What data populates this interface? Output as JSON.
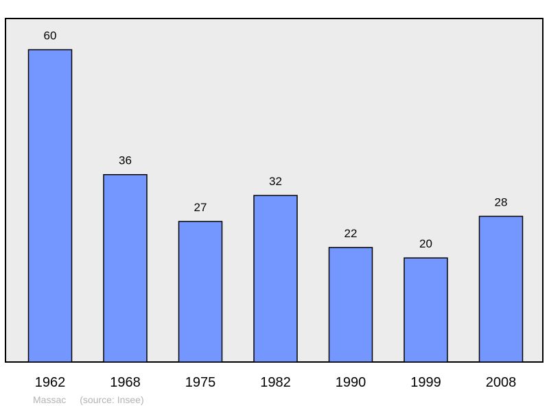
{
  "chart_data": {
    "type": "bar",
    "categories": [
      "1962",
      "1968",
      "1975",
      "1982",
      "1990",
      "1999",
      "2008"
    ],
    "values": [
      60,
      36,
      27,
      32,
      22,
      20,
      28
    ],
    "title": "",
    "xlabel": "",
    "ylabel": "",
    "ylim": [
      0,
      66
    ],
    "grid": false,
    "legend": "none",
    "colors": {
      "bar": "#7396ff",
      "plot_background": "#ececec",
      "border": "#000000",
      "label": "#000000"
    }
  },
  "caption": {
    "commune": "Massac",
    "source": "(source: Insee)"
  }
}
